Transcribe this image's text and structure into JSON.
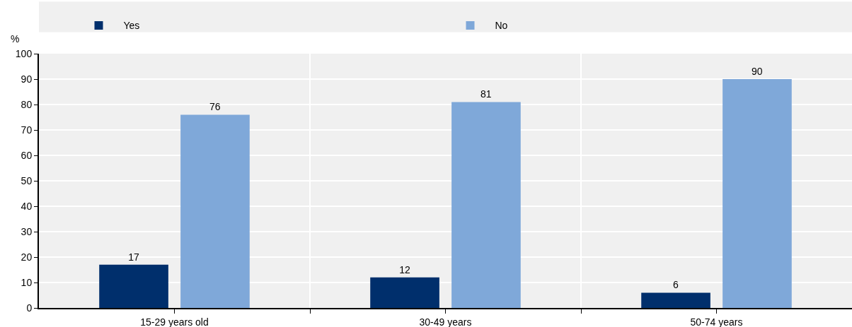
{
  "chart_data": {
    "type": "bar",
    "ylabel": "%",
    "categories": [
      "15-29 years old",
      "30-49 years",
      "50-74 years"
    ],
    "series": [
      {
        "name": "Yes",
        "color": "#002f6c",
        "values": [
          17,
          12,
          6
        ]
      },
      {
        "name": "No",
        "color": "#7fa8d9",
        "values": [
          76,
          81,
          90
        ]
      }
    ],
    "ylim": [
      0,
      100
    ],
    "yticks": [
      0,
      10,
      20,
      30,
      40,
      50,
      60,
      70,
      80,
      90,
      100
    ],
    "grid": true,
    "legend": "top",
    "data_labels": true
  }
}
